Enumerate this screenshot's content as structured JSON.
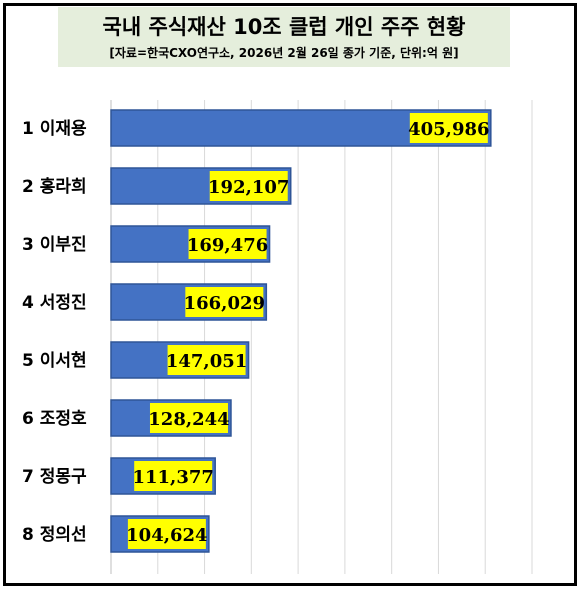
{
  "header": {
    "title": "국내 주식재산 10조 클럽 개인 주주 현황",
    "subtitle": "[자료=한국CXO연구소, 2026년 2월 26일 종가 기준, 단위:억 원]"
  },
  "colors": {
    "bar": "#4472c4",
    "bar_border": "#2f5597",
    "label_bg": "#ffff00",
    "title_bg": "#e5eedc",
    "grid": "#d9d9d9"
  },
  "chart_data": {
    "type": "bar",
    "orientation": "horizontal",
    "categories": [
      "1 이재용",
      "2 홍라희",
      "3 이부진",
      "4 서정진",
      "5 이서현",
      "6 조정호",
      "7 정몽구",
      "8 정의선"
    ],
    "values": [
      405986,
      192107,
      169476,
      166029,
      147051,
      128244,
      111377,
      104624
    ],
    "value_labels": [
      "405,986",
      "192,107",
      "169,476",
      "166,029",
      "147,051",
      "128,244",
      "111,377",
      "104,624"
    ],
    "title": "국내 주식재산 10조 클럽 개인 주주 현황",
    "subtitle": "[자료=한국CXO연구소, 2026년 2월 26일 종가 기준, 단위:억 원]",
    "xlim": [
      0,
      450000
    ],
    "grid": true,
    "legend": "none"
  }
}
